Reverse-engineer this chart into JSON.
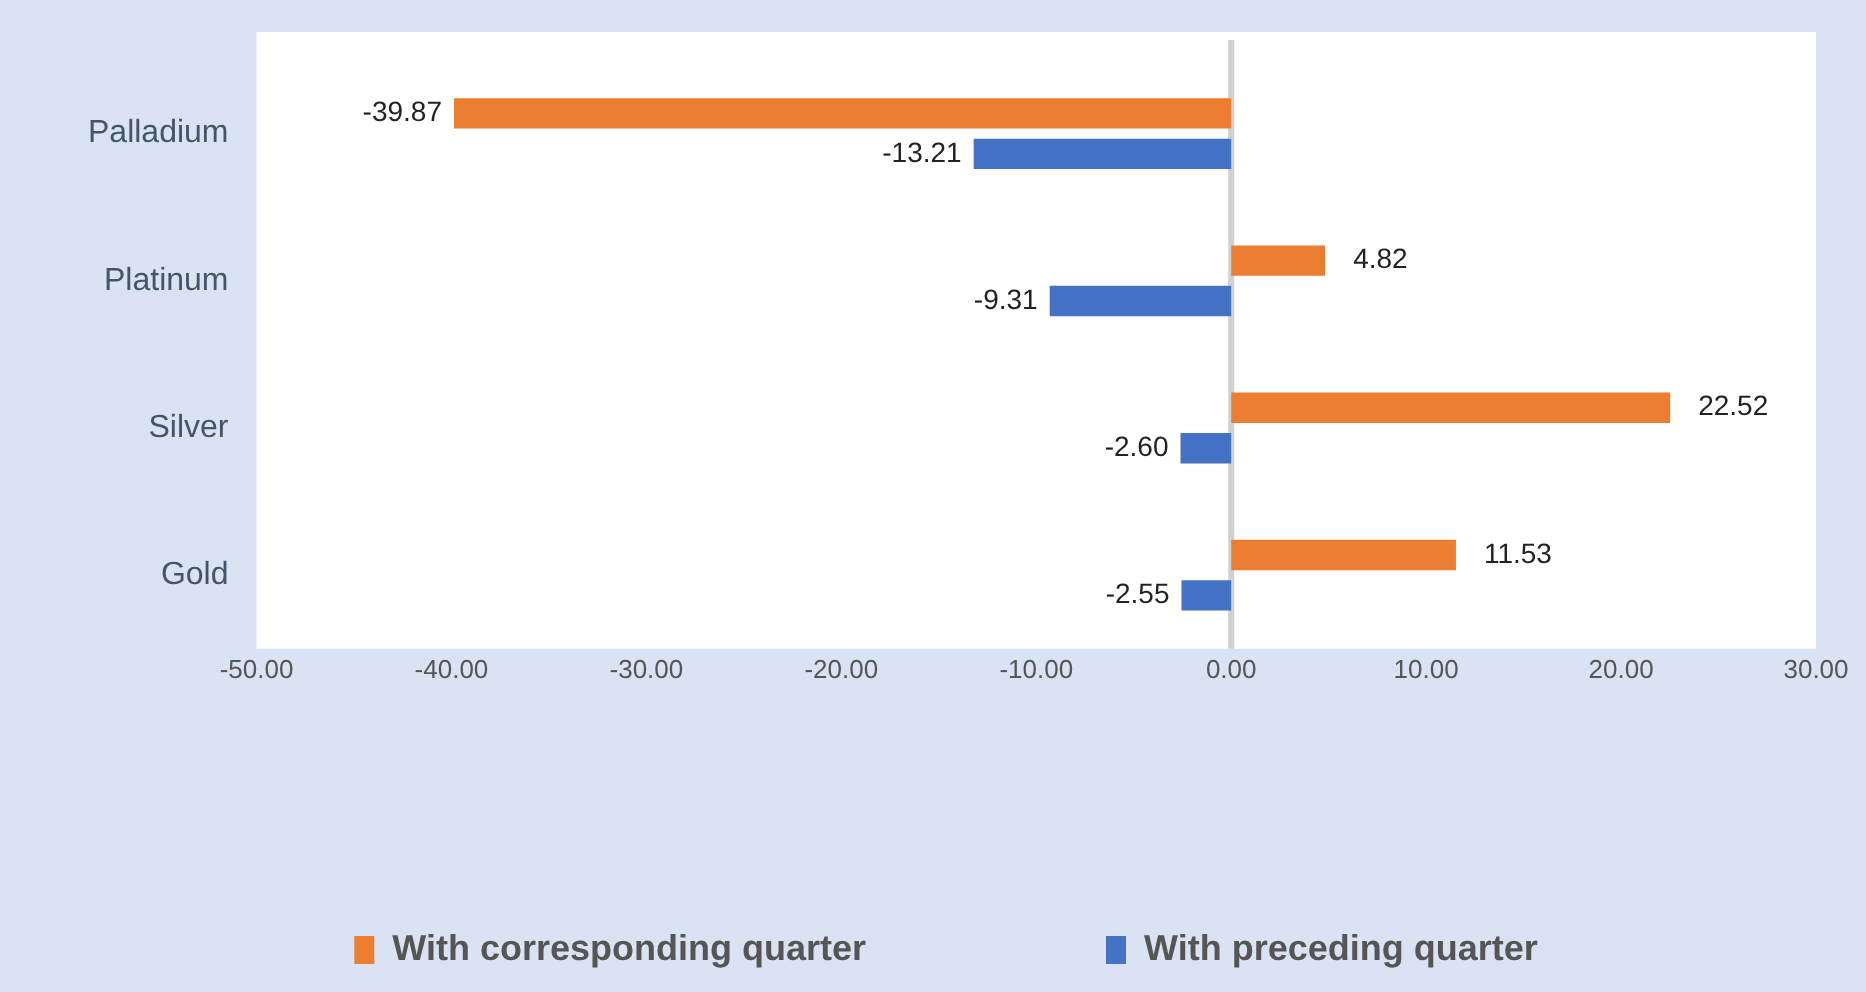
{
  "chart_data": {
    "type": "bar",
    "orientation": "horizontal",
    "categories": [
      "Palladium",
      "Platinum",
      "Silver",
      "Gold"
    ],
    "series": [
      {
        "name": "With corresponding quarter",
        "color": "#ed7d31",
        "values": [
          -39.87,
          4.82,
          22.52,
          11.53
        ],
        "value_labels": [
          "-39.87",
          "4.82",
          "22.52",
          "11.53"
        ]
      },
      {
        "name": "With preceding quarter",
        "color": "#4472c4",
        "values": [
          -13.21,
          -9.31,
          -2.6,
          -2.55
        ],
        "value_labels": [
          "-13.21",
          "-9.31",
          "-2.60",
          "-2.55"
        ]
      }
    ],
    "xlim": [
      -50,
      30
    ],
    "xticks": [
      {
        "value": -50,
        "label": "-50.00"
      },
      {
        "value": -40,
        "label": "-40.00"
      },
      {
        "value": -30,
        "label": "-30.00"
      },
      {
        "value": -20,
        "label": "-20.00"
      },
      {
        "value": -10,
        "label": "-10.00"
      },
      {
        "value": 0,
        "label": "0.00"
      },
      {
        "value": 10,
        "label": "10.00"
      },
      {
        "value": 20,
        "label": "20.00"
      },
      {
        "value": 30,
        "label": "30.00"
      }
    ],
    "ref_lines": [
      {
        "axis": "x",
        "value": 0,
        "color": "#d0d0d0"
      }
    ],
    "grid": false,
    "legend": "bottom"
  }
}
